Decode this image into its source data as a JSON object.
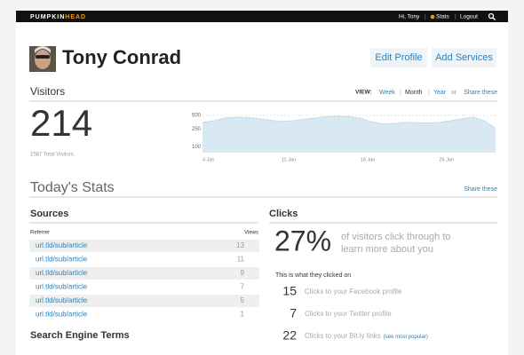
{
  "top_bar": {
    "brand_main": "PUMPKIN",
    "brand_accent": "HEAD",
    "greeting": "Hi, Tony",
    "stats": "Stats",
    "logout": "Logout"
  },
  "profile": {
    "name": "Tony Conrad",
    "buttons": [
      "Edit Profile",
      "Add Services"
    ]
  },
  "visitors": {
    "title": "Visitors",
    "view_label": "VIEW:",
    "view_options": [
      "Week",
      "Month",
      "Year"
    ],
    "or": "or",
    "share": "Share these",
    "total": "214",
    "total_label": "1587 Total Visitors",
    "chart_data": {
      "type": "area",
      "categories": [
        "4 Jan",
        null,
        null,
        null,
        null,
        null,
        null,
        "11 Jan",
        null,
        null,
        null,
        null,
        null,
        null,
        "18 Jan",
        null,
        null,
        null,
        null,
        null,
        null,
        "25 Jan",
        null,
        null,
        null,
        null,
        null
      ],
      "values": [
        350,
        380,
        440,
        457,
        450,
        420,
        390,
        366,
        380,
        410,
        440,
        470,
        478,
        470,
        430,
        360,
        320,
        330,
        350,
        345,
        340,
        350,
        380,
        420,
        460,
        380,
        256
      ],
      "color": "#d8e9f3",
      "line_color": "#c3dcea",
      "log_scale": true,
      "ylim": [
        75,
        600
      ],
      "yticks": [
        500,
        250,
        100
      ],
      "grid": true
    }
  },
  "today": {
    "title": "Today's Stats",
    "share": "Share these"
  },
  "sources": {
    "title": "Sources",
    "headers": [
      "Referrer",
      "Views"
    ],
    "rows": [
      [
        "url.tld/sub/article",
        "13"
      ],
      [
        "url.tld/sub/article",
        "11"
      ],
      [
        "url.tld/sub/article",
        "9"
      ],
      [
        "url.tld/sub/article",
        "7"
      ],
      [
        "url.tld/sub/article",
        "5"
      ],
      [
        "url.tld/sub/article",
        "1"
      ]
    ]
  },
  "search_title": "Search Engine Terms",
  "clicks": {
    "title": "Clicks",
    "percent": "27%",
    "percent_text": [
      "of visitors click through to",
      "learn more about you"
    ],
    "intro": "This is what they clicked on",
    "items": [
      {
        "count": "15",
        "text": "Clicks to your Facebook profile"
      },
      {
        "count": "7",
        "text": "Clicks to your Twitter profile"
      },
      {
        "count": "22",
        "text": "Clicks to your Bit.ly links",
        "extra": "(see most popular)"
      }
    ]
  }
}
